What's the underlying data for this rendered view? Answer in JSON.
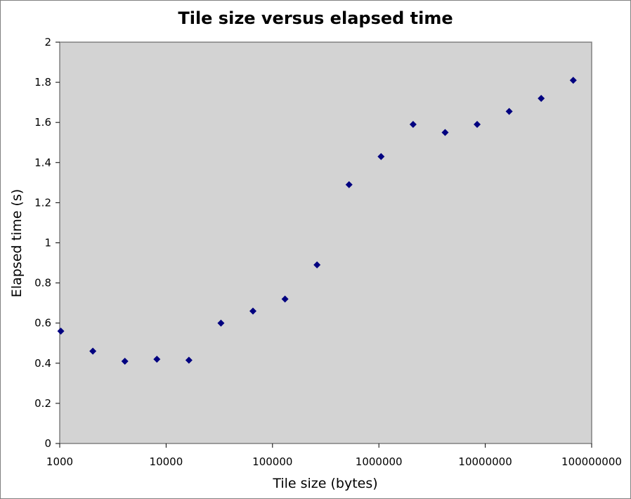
{
  "chart_data": {
    "type": "scatter",
    "title": "Tile size versus elapsed time",
    "xlabel": "Tile size (bytes)",
    "ylabel": "Elapsed time (s)",
    "xscale": "log",
    "xlim": [
      1000,
      100000000
    ],
    "ylim": [
      0,
      2
    ],
    "x_ticks": [
      "1000",
      "10000",
      "100000",
      "1000000",
      "10000000",
      "100000000"
    ],
    "y_ticks": [
      "0",
      "0.2",
      "0.4",
      "0.6",
      "0.8",
      "1",
      "1.2",
      "1.4",
      "1.6",
      "1.8",
      "2"
    ],
    "grid": false,
    "legend": "none",
    "plot_background": "#d3d3d3",
    "marker": "diamond",
    "marker_color": "#000080",
    "series": [
      {
        "x": [
          1024,
          2048,
          4096,
          8192,
          16384,
          32768,
          65536,
          131072,
          262144,
          524288,
          1048576,
          2097152,
          4194304,
          8388608,
          16777216,
          33554432,
          67108864
        ],
        "y": [
          0.56,
          0.46,
          0.41,
          0.42,
          0.415,
          0.6,
          0.66,
          0.72,
          0.89,
          1.29,
          1.43,
          1.59,
          1.55,
          1.59,
          1.655,
          1.72,
          1.81
        ]
      }
    ]
  }
}
